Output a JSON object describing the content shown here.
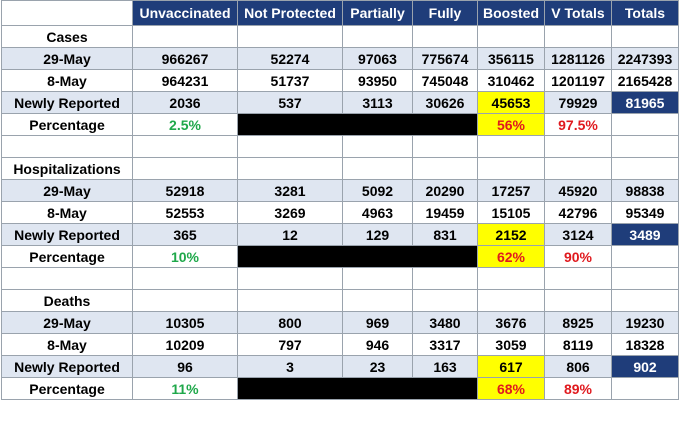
{
  "colors": {
    "header_bg": "#1f3d7a",
    "alt_row_bg": "#dfe6f1",
    "boosted_highlight": "#ffff00",
    "pct_green": "#1fa84a",
    "pct_red": "#e0191e"
  },
  "headers": [
    "Unvaccinated",
    "Not Protected",
    "Partially",
    "Fully",
    "Boosted",
    "V Totals",
    "Totals"
  ],
  "sections": [
    {
      "title": "Cases",
      "rows": [
        {
          "label": "29-May",
          "values": [
            "966267",
            "52274",
            "97063",
            "775674",
            "356115",
            "1281126",
            "2247393"
          ]
        },
        {
          "label": "8-May",
          "values": [
            "964231",
            "51737",
            "93950",
            "745048",
            "310462",
            "1201197",
            "2165428"
          ]
        },
        {
          "label": "Newly Reported",
          "values": [
            "2036",
            "537",
            "3113",
            "30626",
            "45653",
            "79929",
            "81965"
          ]
        }
      ],
      "percentage": {
        "label": "Percentage",
        "unvaccinated": "2.5%",
        "boosted": "56%",
        "v_totals": "97.5%"
      }
    },
    {
      "title": "Hospitalizations",
      "rows": [
        {
          "label": "29-May",
          "values": [
            "52918",
            "3281",
            "5092",
            "20290",
            "17257",
            "45920",
            "98838"
          ]
        },
        {
          "label": "8-May",
          "values": [
            "52553",
            "3269",
            "4963",
            "19459",
            "15105",
            "42796",
            "95349"
          ]
        },
        {
          "label": "Newly Reported",
          "values": [
            "365",
            "12",
            "129",
            "831",
            "2152",
            "3124",
            "3489"
          ]
        }
      ],
      "percentage": {
        "label": "Percentage",
        "unvaccinated": "10%",
        "boosted": "62%",
        "v_totals": "90%"
      }
    },
    {
      "title": "Deaths",
      "rows": [
        {
          "label": "29-May",
          "values": [
            "10305",
            "800",
            "969",
            "3480",
            "3676",
            "8925",
            "19230"
          ]
        },
        {
          "label": "8-May",
          "values": [
            "10209",
            "797",
            "946",
            "3317",
            "3059",
            "8119",
            "18328"
          ]
        },
        {
          "label": "Newly Reported",
          "values": [
            "96",
            "3",
            "23",
            "163",
            "617",
            "806",
            "902"
          ]
        }
      ],
      "percentage": {
        "label": "Percentage",
        "unvaccinated": "11%",
        "boosted": "68%",
        "v_totals": "89%"
      }
    }
  ]
}
